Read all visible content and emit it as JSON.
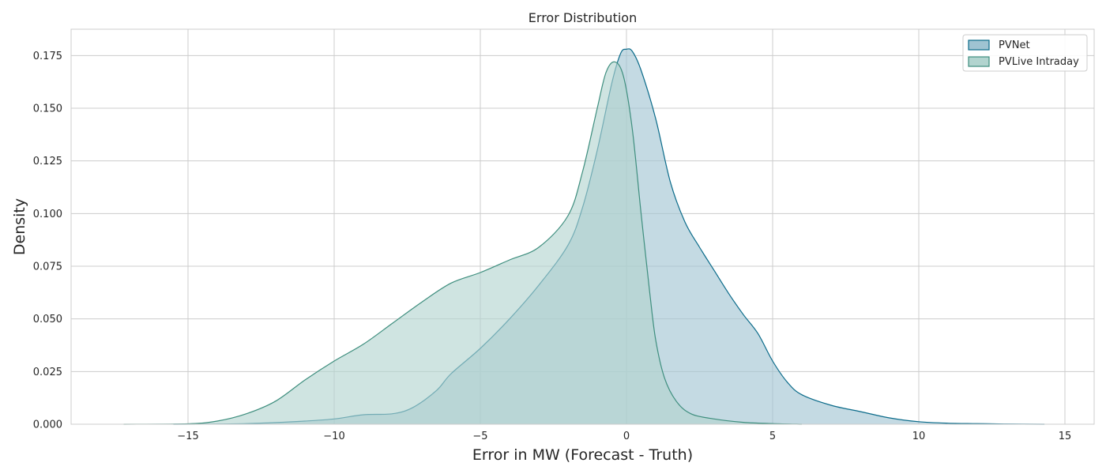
{
  "chart_data": {
    "type": "area",
    "title": "Error Distribution",
    "xlabel": "Error in MW (Forecast - Truth)",
    "ylabel": "Density",
    "xlim": [
      -19,
      16
    ],
    "ylim": [
      0,
      0.1875
    ],
    "x_ticks": [
      -15,
      -10,
      -5,
      0,
      5,
      10,
      15
    ],
    "x_tick_labels": [
      "−15",
      "−10",
      "−5",
      "0",
      "5",
      "10",
      "15"
    ],
    "y_ticks": [
      0,
      0.025,
      0.05,
      0.075,
      0.1,
      0.125,
      0.15,
      0.175
    ],
    "y_tick_labels": [
      "0.000",
      "0.025",
      "0.050",
      "0.075",
      "0.100",
      "0.125",
      "0.150",
      "0.175"
    ],
    "grid": true,
    "legend_position": "top-right",
    "series": [
      {
        "name": "PVNet",
        "line_color": "#0b6b8a",
        "fill_color": "#9fc3d2",
        "points": [
          [
            -15.5,
            0
          ],
          [
            -14,
            0.0001
          ],
          [
            -13,
            0.0003
          ],
          [
            -12,
            0.0008
          ],
          [
            -11,
            0.0015
          ],
          [
            -10,
            0.0025
          ],
          [
            -9,
            0.0045
          ],
          [
            -8,
            0.005
          ],
          [
            -7.3,
            0.008
          ],
          [
            -6.5,
            0.016
          ],
          [
            -6,
            0.024
          ],
          [
            -5,
            0.036
          ],
          [
            -4,
            0.05
          ],
          [
            -3,
            0.066
          ],
          [
            -2,
            0.085
          ],
          [
            -1.5,
            0.103
          ],
          [
            -1,
            0.13
          ],
          [
            -0.5,
            0.162
          ],
          [
            -0.2,
            0.176
          ],
          [
            0,
            0.178
          ],
          [
            0.2,
            0.177
          ],
          [
            0.5,
            0.168
          ],
          [
            1,
            0.145
          ],
          [
            1.5,
            0.115
          ],
          [
            2,
            0.096
          ],
          [
            2.5,
            0.084
          ],
          [
            3,
            0.073
          ],
          [
            3.5,
            0.062
          ],
          [
            4,
            0.052
          ],
          [
            4.5,
            0.043
          ],
          [
            5,
            0.03
          ],
          [
            5.5,
            0.02
          ],
          [
            6,
            0.014
          ],
          [
            7,
            0.009
          ],
          [
            8,
            0.006
          ],
          [
            9,
            0.003
          ],
          [
            10,
            0.0012
          ],
          [
            11,
            0.0005
          ],
          [
            12,
            0.0003
          ],
          [
            13,
            0.0001
          ],
          [
            14.3,
            0
          ]
        ]
      },
      {
        "name": "PVLive Intraday",
        "line_color": "#3e8e7e",
        "fill_color": "#b2d4cf",
        "points": [
          [
            -17.2,
            0
          ],
          [
            -15,
            0.0002
          ],
          [
            -14,
            0.0015
          ],
          [
            -13,
            0.005
          ],
          [
            -12,
            0.011
          ],
          [
            -11,
            0.021
          ],
          [
            -10,
            0.03
          ],
          [
            -9,
            0.038
          ],
          [
            -8,
            0.048
          ],
          [
            -7,
            0.058
          ],
          [
            -6,
            0.067
          ],
          [
            -5,
            0.072
          ],
          [
            -4,
            0.078
          ],
          [
            -3,
            0.084
          ],
          [
            -2,
            0.099
          ],
          [
            -1.5,
            0.12
          ],
          [
            -1,
            0.15
          ],
          [
            -0.7,
            0.167
          ],
          [
            -0.4,
            0.172
          ],
          [
            -0.1,
            0.165
          ],
          [
            0.2,
            0.14
          ],
          [
            0.5,
            0.1
          ],
          [
            0.8,
            0.062
          ],
          [
            1,
            0.04
          ],
          [
            1.3,
            0.022
          ],
          [
            1.7,
            0.011
          ],
          [
            2.2,
            0.005
          ],
          [
            3,
            0.0025
          ],
          [
            4,
            0.0009
          ],
          [
            5,
            0.0003
          ],
          [
            6,
            0
          ]
        ]
      }
    ]
  }
}
